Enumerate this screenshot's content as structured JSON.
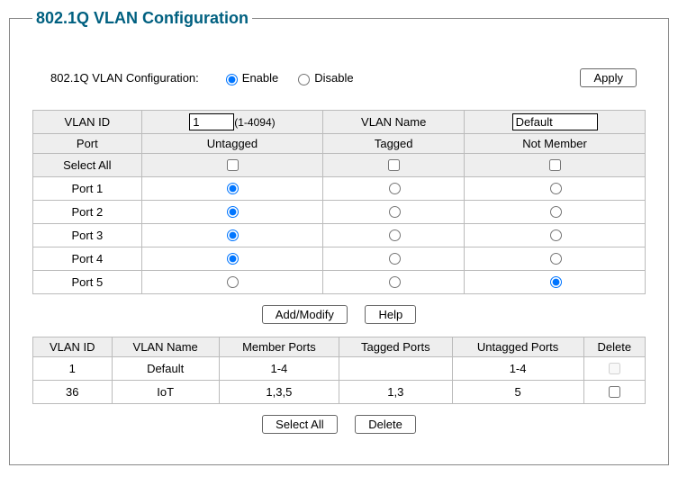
{
  "legend": "802.1Q VLAN Configuration",
  "config": {
    "label": "802.1Q VLAN Configuration:",
    "enable_label": "Enable",
    "disable_label": "Disable",
    "selected": "enable",
    "apply_label": "Apply"
  },
  "portTable": {
    "headers": {
      "vlan_id": "VLAN ID",
      "vlan_id_value": "1",
      "vlan_id_hint": "(1-4094)",
      "vlan_name": "VLAN Name",
      "vlan_name_value": "Default",
      "port": "Port",
      "untagged": "Untagged",
      "tagged": "Tagged",
      "not_member": "Not Member",
      "select_all": "Select All"
    },
    "rows": [
      {
        "port": "Port 1",
        "sel": "untagged"
      },
      {
        "port": "Port 2",
        "sel": "untagged"
      },
      {
        "port": "Port 3",
        "sel": "untagged"
      },
      {
        "port": "Port 4",
        "sel": "untagged"
      },
      {
        "port": "Port 5",
        "sel": "not_member"
      }
    ]
  },
  "midButtons": {
    "add_modify": "Add/Modify",
    "help": "Help"
  },
  "vlanTable": {
    "headers": {
      "vlan_id": "VLAN ID",
      "vlan_name": "VLAN Name",
      "member_ports": "Member Ports",
      "tagged_ports": "Tagged Ports",
      "untagged_ports": "Untagged Ports",
      "delete": "Delete"
    },
    "rows": [
      {
        "id": "1",
        "name": "Default",
        "member": "1-4",
        "tagged": "",
        "untagged": "1-4",
        "deletable": false
      },
      {
        "id": "36",
        "name": "IoT",
        "member": "1,3,5",
        "tagged": "1,3",
        "untagged": "5",
        "deletable": true
      }
    ]
  },
  "bottomButtons": {
    "select_all": "Select All",
    "delete": "Delete"
  }
}
